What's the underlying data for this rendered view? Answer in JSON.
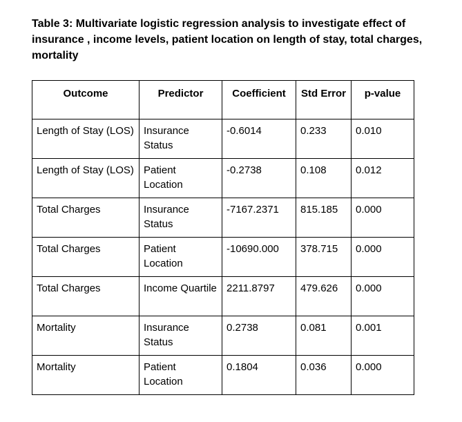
{
  "document": {
    "title": "Table 3: Multivariate logistic regression analysis to investigate effect of insurance , income levels, patient location on length of stay, total charges, mortality"
  },
  "table": {
    "headers": [
      "Outcome",
      "Predictor",
      "Coefficient",
      "Std Error",
      "p-value"
    ],
    "rows": [
      [
        "Length of Stay (LOS)",
        "Insurance Status",
        "-0.6014",
        "0.233",
        "0.010"
      ],
      [
        "Length of Stay (LOS)",
        "Patient Location",
        "-0.2738",
        "0.108",
        "0.012"
      ],
      [
        "Total Charges",
        "Insurance Status",
        "-7167.2371",
        "815.185",
        "0.000"
      ],
      [
        "Total Charges",
        "Patient Location",
        "-10690.000",
        "378.715",
        "0.000"
      ],
      [
        "Total Charges",
        "Income Quartile",
        "2211.8797",
        "479.626",
        "0.000"
      ],
      [
        "Mortality",
        "Insurance Status",
        "0.2738",
        "0.081",
        "0.001"
      ],
      [
        "Mortality",
        "Patient Location",
        "0.1804",
        "0.036",
        "0.000"
      ]
    ]
  }
}
